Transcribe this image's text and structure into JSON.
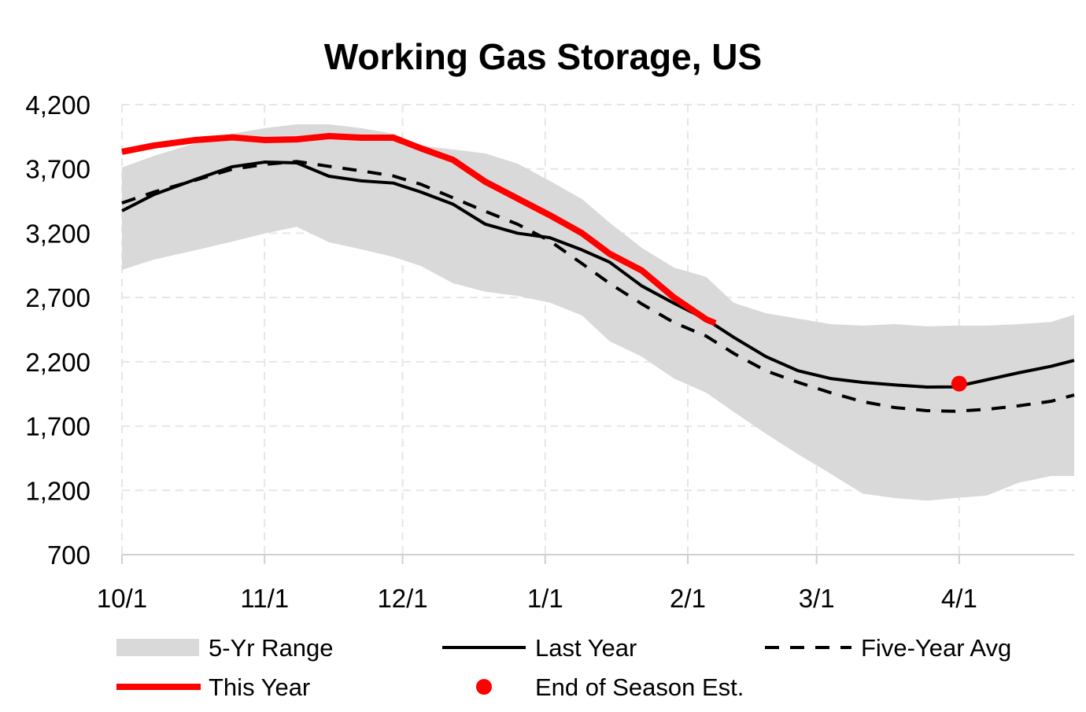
{
  "chart_data": {
    "type": "line",
    "title": "Working Gas Storage, US",
    "xlabel": "",
    "ylabel": "",
    "ylim": [
      700,
      4200
    ],
    "xlim": [
      "10/1",
      "4/26"
    ],
    "grid": true,
    "legend_position": "bottom",
    "y_ticks": [
      "4,200",
      "3,700",
      "3,200",
      "2,700",
      "2,200",
      "1,700",
      "1,200",
      "700"
    ],
    "y_tick_values": [
      4200,
      3700,
      3200,
      2700,
      2200,
      1700,
      1200,
      700
    ],
    "x_ticks": [
      "10/1",
      "11/1",
      "12/1",
      "1/1",
      "2/1",
      "3/1",
      "4/1"
    ],
    "x": [
      "10/1",
      "10/8",
      "10/17",
      "10/25",
      "11/1",
      "11/8",
      "11/15",
      "11/22",
      "11/29",
      "12/5",
      "12/12",
      "12/19",
      "12/26",
      "1/2",
      "1/9",
      "1/15",
      "1/22",
      "1/29",
      "2/5",
      "2/11",
      "2/18",
      "2/25",
      "3/4",
      "3/11",
      "3/18",
      "3/25",
      "3/31",
      "4/7",
      "4/14",
      "4/21",
      "4/26"
    ],
    "range": {
      "name": "5-Yr Range",
      "color": "#d9d9d9",
      "upper": [
        3711,
        3802,
        3900,
        3974,
        4017,
        4047,
        4047,
        4017,
        3974,
        3882,
        3851,
        3821,
        3741,
        3607,
        3466,
        3282,
        3086,
        2933,
        2860,
        2658,
        2578,
        2536,
        2493,
        2481,
        2493,
        2475,
        2481,
        2481,
        2493,
        2510,
        2566
      ],
      "lower": [
        2915,
        2995,
        3068,
        3135,
        3197,
        3250,
        3130,
        3075,
        3015,
        2945,
        2810,
        2745,
        2712,
        2660,
        2560,
        2360,
        2240,
        2070,
        1960,
        1810,
        1640,
        1480,
        1330,
        1175,
        1140,
        1120,
        1140,
        1160,
        1260,
        1312,
        1312
      ]
    },
    "series": [
      {
        "name": "Last Year",
        "color": "#000000",
        "style": "solid",
        "values": [
          3374,
          3502,
          3619,
          3717,
          3753,
          3747,
          3643,
          3607,
          3590,
          3520,
          3425,
          3270,
          3200,
          3165,
          3070,
          2975,
          2790,
          2655,
          2530,
          2390,
          2240,
          2130,
          2070,
          2040,
          2020,
          2003,
          2005,
          2060,
          2115,
          2165,
          2211
        ]
      },
      {
        "name": "Five-Year Avg",
        "color": "#000000",
        "style": "dashed",
        "values": [
          3435,
          3521,
          3613,
          3698,
          3735,
          3758,
          3720,
          3685,
          3645,
          3580,
          3475,
          3370,
          3270,
          3140,
          2964,
          2810,
          2650,
          2505,
          2400,
          2265,
          2130,
          2040,
          1960,
          1890,
          1844,
          1820,
          1815,
          1830,
          1858,
          1893,
          1942
        ]
      },
      {
        "name": "This Year",
        "color": "#ff0000",
        "style": "solid-thick",
        "x": [
          "10/1",
          "10/8",
          "10/17",
          "10/25",
          "11/1",
          "11/8",
          "11/15",
          "11/22",
          "11/29",
          "12/5",
          "12/12",
          "12/19",
          "12/26",
          "1/2",
          "1/9",
          "1/15",
          "1/22",
          "1/29",
          "2/5",
          "2/7"
        ],
        "values": [
          3833,
          3882,
          3925,
          3945,
          3925,
          3930,
          3955,
          3943,
          3943,
          3860,
          3770,
          3600,
          3470,
          3340,
          3200,
          3040,
          2910,
          2700,
          2530,
          2500
        ]
      }
    ],
    "points": [
      {
        "name": "End of Season Est.",
        "color": "#ff0000",
        "x": "4/1",
        "y": 2030
      }
    ]
  }
}
